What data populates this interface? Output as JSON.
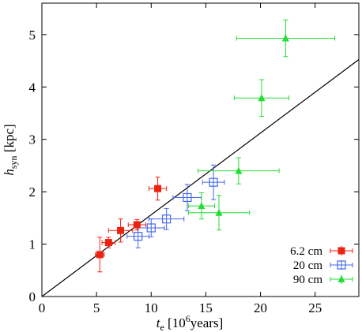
{
  "chart_data": {
    "type": "scatter",
    "xlabel": {
      "main": "t",
      "sub": "e",
      "unit_pre": " [10",
      "unit_sup": "6",
      "unit_post": "years]"
    },
    "ylabel": {
      "main": "h",
      "sub": "syn",
      "unit": " [kpc]"
    },
    "xlim": [
      0,
      29
    ],
    "ylim": [
      0,
      5.6
    ],
    "xticks": [
      0,
      5,
      10,
      15,
      20,
      25
    ],
    "yticks": [
      0,
      1,
      2,
      3,
      4,
      5
    ],
    "xtick_labels": [
      "0",
      "5",
      "10",
      "15",
      "20",
      "25"
    ],
    "ytick_labels": [
      "0",
      "1",
      "2",
      "3",
      "4",
      "5"
    ],
    "legend_position": "bottom-right",
    "fit_line": {
      "slope": 0.156,
      "intercept": 0,
      "color": "#000000"
    },
    "series": [
      {
        "name": "6.2 cm",
        "marker": "filled-square",
        "color": "#ee2211",
        "points": [
          {
            "x": 5.3,
            "y": 0.8,
            "xerr": 0.4,
            "yerr": 0.33
          },
          {
            "x": 6.1,
            "y": 1.03,
            "xerr": 0.6,
            "yerr": 0.1
          },
          {
            "x": 7.2,
            "y": 1.26,
            "xerr": 1.1,
            "yerr": 0.22
          },
          {
            "x": 8.7,
            "y": 1.37,
            "xerr": 0.8,
            "yerr": 0.1
          },
          {
            "x": 10.6,
            "y": 2.06,
            "xerr": 0.8,
            "yerr": 0.22
          }
        ]
      },
      {
        "name": "20 cm",
        "marker": "open-square",
        "color": "#4466ee",
        "points": [
          {
            "x": 8.8,
            "y": 1.15,
            "xerr": 1.0,
            "yerr": 0.22
          },
          {
            "x": 10.0,
            "y": 1.31,
            "xerr": 1.2,
            "yerr": 0.17
          },
          {
            "x": 11.4,
            "y": 1.48,
            "xerr": 1.6,
            "yerr": 0.2
          },
          {
            "x": 13.3,
            "y": 1.89,
            "xerr": 1.3,
            "yerr": 0.25
          },
          {
            "x": 15.7,
            "y": 2.18,
            "xerr": 1.0,
            "yerr": 0.33
          }
        ]
      },
      {
        "name": "90 cm",
        "marker": "filled-triangle",
        "color": "#22dd33",
        "points": [
          {
            "x": 14.6,
            "y": 1.73,
            "xerr": 1.2,
            "yerr": 0.25
          },
          {
            "x": 16.2,
            "y": 1.6,
            "xerr": 2.8,
            "yerr": 0.33
          },
          {
            "x": 18.0,
            "y": 2.4,
            "xerr": 3.7,
            "yerr": 0.25
          },
          {
            "x": 20.1,
            "y": 3.79,
            "xerr": 2.5,
            "yerr": 0.35
          },
          {
            "x": 22.3,
            "y": 4.93,
            "xerr": 4.5,
            "yerr": 0.35
          }
        ]
      }
    ]
  }
}
